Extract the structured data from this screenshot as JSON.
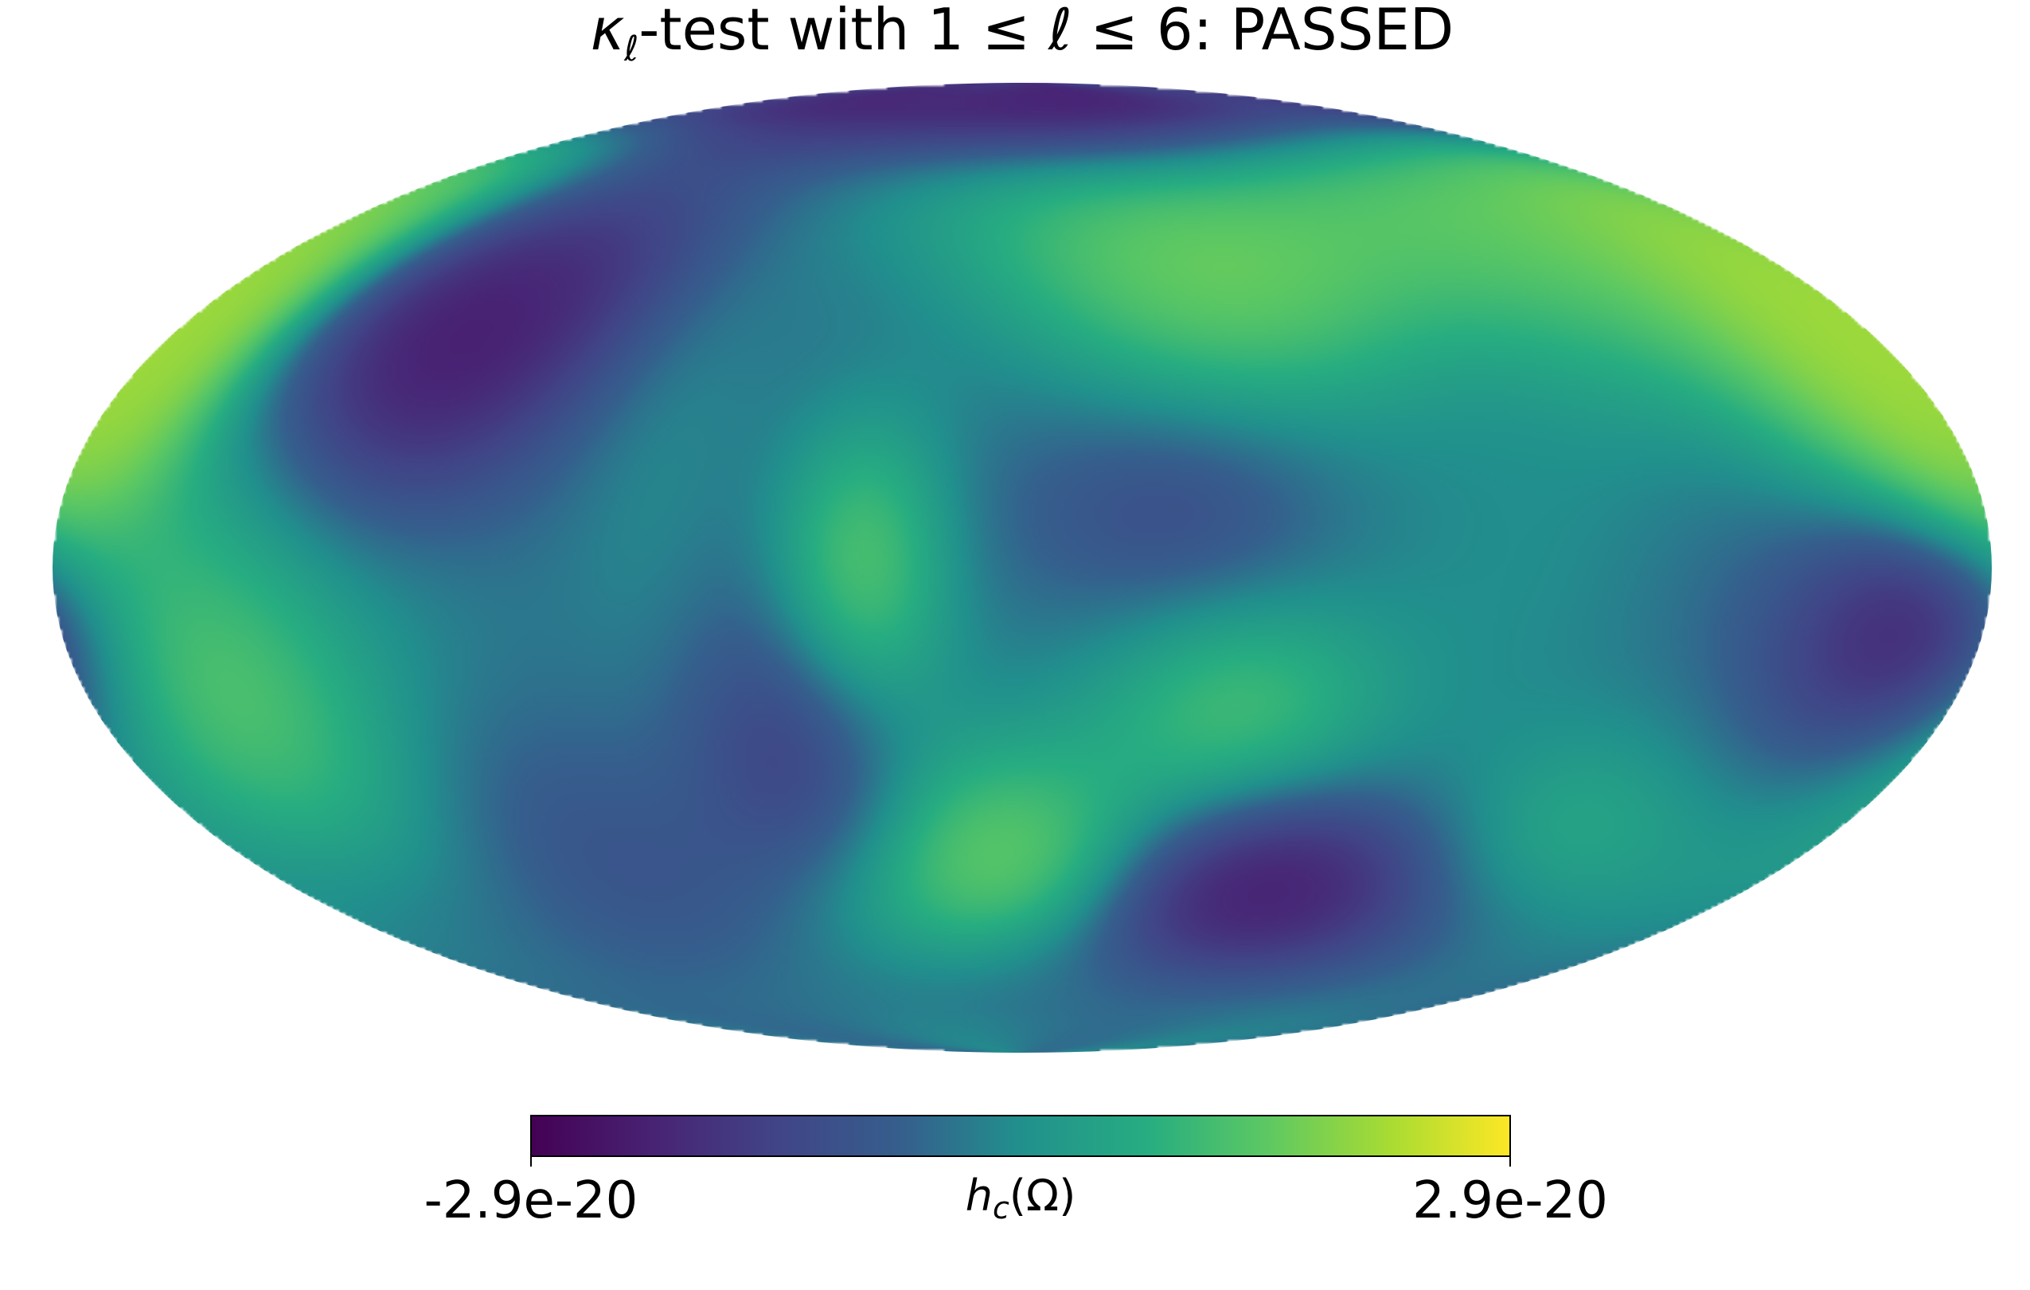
{
  "chart_data": {
    "type": "heatmap",
    "projection": "mollweide",
    "title": {
      "symbol": "κ",
      "subscript": "ℓ",
      "text": "-test with 1 ≤ ℓ ≤ 6: PASSED"
    },
    "colormap": "viridis",
    "colorbar": {
      "min_label": "-2.9e-20",
      "max_label": "2.9e-20",
      "label_symbol": "h",
      "label_subscript": "c",
      "label_rest": "(Ω)",
      "vmin": -2.9e-20,
      "vmax": 2.9e-20,
      "orientation": "horizontal",
      "placement": "bottom"
    },
    "graticule": false,
    "blobs": [
      {
        "lon": -118,
        "lat": 35,
        "value": -1.0,
        "rlon": 20,
        "rlat": 18
      },
      {
        "lon": 46,
        "lat": 48,
        "value": 0.78,
        "rlon": 28,
        "rlat": 15
      },
      {
        "lon": 120,
        "lat": 45,
        "value": 0.4,
        "rlon": 18,
        "rlat": 20
      },
      {
        "lon": 165,
        "lat": 35,
        "value": 0.95,
        "rlon": 18,
        "rlat": 22
      },
      {
        "lon": -178,
        "lat": 35,
        "value": 0.95,
        "rlon": 12,
        "rlat": 22
      },
      {
        "lon": 5,
        "lat": 82,
        "value": -0.9,
        "rlon": 70,
        "rlat": 10
      },
      {
        "lon": -68,
        "lat": 12,
        "value": 0.15,
        "rlon": 12,
        "rlat": 30
      },
      {
        "lon": 30,
        "lat": 8,
        "value": -0.4,
        "rlon": 22,
        "rlat": 12
      },
      {
        "lon": -30,
        "lat": 0,
        "value": 0.75,
        "rlon": 12,
        "rlat": 16
      },
      {
        "lon": 170,
        "lat": -8,
        "value": -1.0,
        "rlon": 18,
        "rlat": 14
      },
      {
        "lon": 42,
        "lat": -22,
        "value": 0.45,
        "rlon": 18,
        "rlat": 12
      },
      {
        "lon": -6,
        "lat": -48,
        "value": 0.85,
        "rlon": 18,
        "rlat": 14
      },
      {
        "lon": 60,
        "lat": -52,
        "value": -1.0,
        "rlon": 22,
        "rlat": 12
      },
      {
        "lon": -155,
        "lat": -22,
        "value": 0.5,
        "rlon": 22,
        "rlat": 18
      },
      {
        "lon": -45,
        "lat": -30,
        "value": -0.4,
        "rlon": 15,
        "rlat": 18
      },
      {
        "lon": -105,
        "lat": -45,
        "value": -0.3,
        "rlon": 20,
        "rlat": 18
      },
      {
        "lon": 118,
        "lat": -42,
        "value": 0.4,
        "rlon": 20,
        "rlat": 14
      },
      {
        "lon": 100,
        "lat": 0,
        "value": 0.1,
        "rlon": 18,
        "rlat": 16
      },
      {
        "lon": -170,
        "lat": 0,
        "value": 0.3,
        "rlon": 20,
        "rlat": 22
      }
    ]
  }
}
